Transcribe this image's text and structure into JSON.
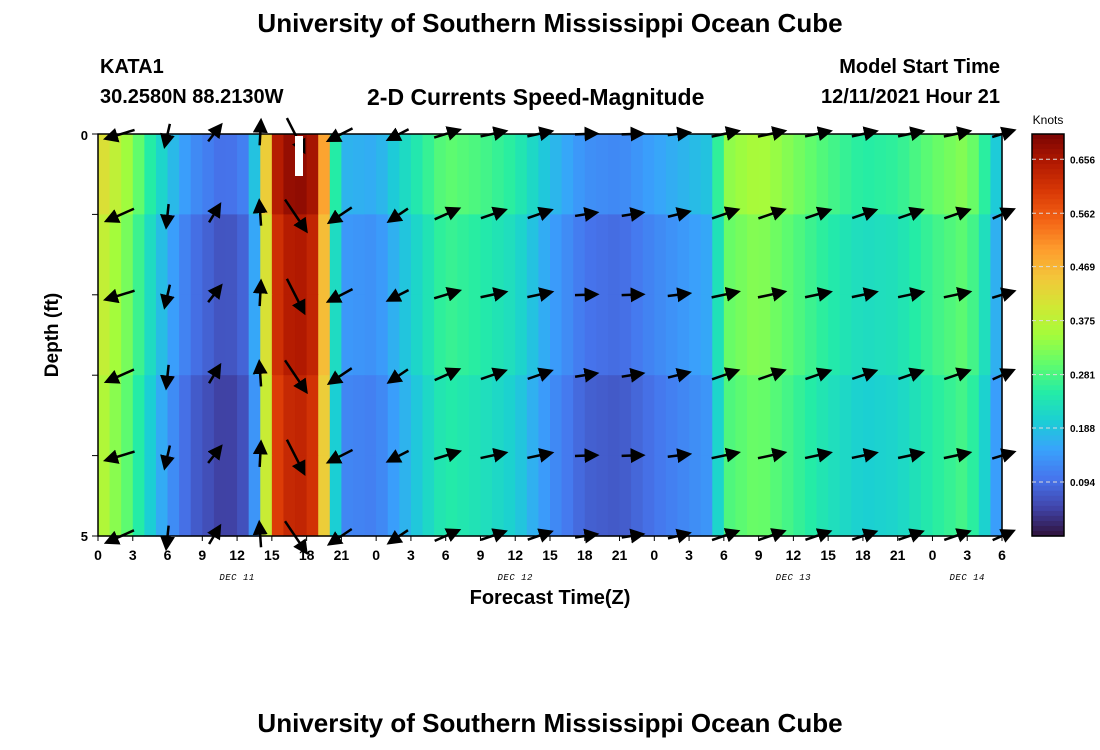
{
  "header": {
    "title": "University of Southern Mississippi Ocean Cube",
    "station": "KATA1",
    "coordinates": "30.2580N  88.2130W",
    "subtitle": "2-D Currents Speed-Magnitude",
    "model_start_label": "Model Start Time",
    "model_start_value": "12/11/2021 Hour 21"
  },
  "footer": {
    "title": "University of Southern Mississippi Ocean Cube"
  },
  "chart_data": {
    "type": "heatmap",
    "title": "2-D Currents Speed-Magnitude",
    "xlabel": "Forecast Time(Z)",
    "ylabel": "Depth (ft)",
    "x_range_hours": [
      0,
      78
    ],
    "y_range": [
      0,
      5
    ],
    "y_ticks": [
      "0",
      "5"
    ],
    "x_tick_labels": [
      "0",
      "3",
      "6",
      "9",
      "12",
      "15",
      "18",
      "21",
      "0",
      "3",
      "6",
      "9",
      "12",
      "15",
      "18",
      "21",
      "0",
      "3",
      "6",
      "9",
      "12",
      "15",
      "18",
      "21",
      "0",
      "3",
      "6"
    ],
    "date_labels": [
      {
        "label": "DEC 11",
        "hour": 12
      },
      {
        "label": "DEC 12",
        "hour": 36
      },
      {
        "label": "DEC 13",
        "hour": 60
      },
      {
        "label": "DEC 14",
        "hour": 75
      }
    ],
    "colorbar": {
      "label": "Knots",
      "min": 0,
      "max": 0.7,
      "ticks": [
        "0.656",
        "0.562",
        "0.469",
        "0.375",
        "0.281",
        "0.188",
        "0.094"
      ],
      "tick_values": [
        0.656,
        0.562,
        0.469,
        0.375,
        0.281,
        0.188,
        0.094
      ],
      "colors": [
        "#30123b",
        "#4145ab",
        "#4675ed",
        "#39a2fc",
        "#1bcfd4",
        "#24eca6",
        "#61fc6c",
        "#a4fc3b",
        "#d1e834",
        "#f3c63a",
        "#fe9b2d",
        "#f36315",
        "#d93806",
        "#b11901",
        "#7a0403"
      ]
    },
    "depth_rows": [
      0,
      1,
      2,
      3,
      4,
      5
    ],
    "speed_by_hour": [
      {
        "hour": 0,
        "speed": 0.4
      },
      {
        "hour": 3,
        "speed": 0.3
      },
      {
        "hour": 4,
        "speed": 0.24
      },
      {
        "hour": 6,
        "speed": 0.16
      },
      {
        "hour": 8,
        "speed": 0.1
      },
      {
        "hour": 11,
        "speed": 0.06
      },
      {
        "hour": 13,
        "speed": 0.09
      },
      {
        "hour": 14,
        "speed": 0.22
      },
      {
        "hour": 15,
        "speed": 0.6
      },
      {
        "hour": 17,
        "speed": 0.66
      },
      {
        "hour": 19,
        "speed": 0.62
      },
      {
        "hour": 20,
        "speed": 0.3
      },
      {
        "hour": 21,
        "speed": 0.14
      },
      {
        "hour": 24,
        "speed": 0.13
      },
      {
        "hour": 27,
        "speed": 0.2
      },
      {
        "hour": 30,
        "speed": 0.27
      },
      {
        "hour": 33,
        "speed": 0.25
      },
      {
        "hour": 36,
        "speed": 0.22
      },
      {
        "hour": 39,
        "speed": 0.15
      },
      {
        "hour": 42,
        "speed": 0.1
      },
      {
        "hour": 45,
        "speed": 0.09
      },
      {
        "hour": 48,
        "speed": 0.12
      },
      {
        "hour": 53,
        "speed": 0.16
      },
      {
        "hour": 54,
        "speed": 0.3
      },
      {
        "hour": 57,
        "speed": 0.33
      },
      {
        "hour": 60,
        "speed": 0.29
      },
      {
        "hour": 63,
        "speed": 0.25
      },
      {
        "hour": 66,
        "speed": 0.22
      },
      {
        "hour": 69,
        "speed": 0.23
      },
      {
        "hour": 72,
        "speed": 0.27
      },
      {
        "hour": 75,
        "speed": 0.3
      },
      {
        "hour": 77,
        "speed": 0.2
      },
      {
        "hour": 78,
        "speed": 0.13
      }
    ],
    "vectors": {
      "hours": [
        2,
        6,
        10,
        14,
        17,
        21,
        26,
        30,
        34,
        38,
        42,
        46,
        50,
        54,
        58,
        62,
        66,
        70,
        74,
        78
      ],
      "direction_deg": [
        200,
        260,
        55,
        90,
        300,
        210,
        210,
        20,
        15,
        15,
        5,
        5,
        10,
        15,
        15,
        15,
        15,
        15,
        15,
        20
      ],
      "magnitude": [
        0.4,
        0.16,
        0.09,
        0.22,
        0.66,
        0.3,
        0.16,
        0.27,
        0.25,
        0.22,
        0.12,
        0.1,
        0.12,
        0.3,
        0.3,
        0.25,
        0.22,
        0.23,
        0.27,
        0.15
      ]
    }
  }
}
